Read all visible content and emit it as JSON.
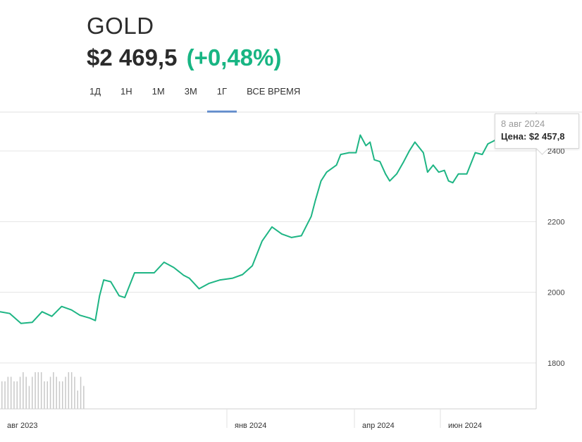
{
  "header": {
    "ticker": "GOLD",
    "price": "$2 469,5",
    "change": "(+0,48%)"
  },
  "tabs": [
    {
      "label": "1Д",
      "active": false
    },
    {
      "label": "1Н",
      "active": false
    },
    {
      "label": "1М",
      "active": false
    },
    {
      "label": "3М",
      "active": false
    },
    {
      "label": "1Г",
      "active": true
    },
    {
      "label": "ВСЕ ВРЕМЯ",
      "active": false
    }
  ],
  "tooltip": {
    "date": "8 авг 2024",
    "price_label": "Цена: $2 457,8"
  },
  "colors": {
    "line": "#1eb584",
    "tab_active": "#2f6ac4",
    "grid": "#e5e5e5",
    "volume": "#c8c8c8"
  },
  "chart_data": {
    "type": "line",
    "title": "",
    "xlabel": "",
    "ylabel": "",
    "x_ticks": [
      "авг 2023",
      "янв 2024",
      "апр 2024",
      "июн 2024"
    ],
    "y_ticks": [
      1800,
      2000,
      2200,
      2400
    ],
    "ylim": [
      1670,
      2510
    ],
    "xlim": [
      "2023-07-23",
      "2024-08-08"
    ],
    "grid": true,
    "series": [
      {
        "x": [
          "2023-07-23",
          "2023-07-30",
          "2023-08-07",
          "2023-08-15",
          "2023-08-22",
          "2023-08-29",
          "2023-09-05",
          "2023-09-12",
          "2023-09-18",
          "2023-09-25",
          "2023-09-29",
          "2023-10-02",
          "2023-10-05",
          "2023-10-10",
          "2023-10-16",
          "2023-10-20",
          "2023-10-27",
          "2023-11-03",
          "2023-11-10",
          "2023-11-17",
          "2023-11-24",
          "2023-12-01",
          "2023-12-05",
          "2023-12-12",
          "2023-12-19",
          "2023-12-27",
          "2024-01-05",
          "2024-01-12",
          "2024-01-19",
          "2024-01-26",
          "2024-02-02",
          "2024-02-09",
          "2024-02-16",
          "2024-02-23",
          "2024-03-01",
          "2024-03-04",
          "2024-03-08",
          "2024-03-12",
          "2024-03-19",
          "2024-03-22",
          "2024-03-28",
          "2024-04-02",
          "2024-04-05",
          "2024-04-09",
          "2024-04-12",
          "2024-04-15",
          "2024-04-19",
          "2024-04-23",
          "2024-04-26",
          "2024-05-01",
          "2024-05-06",
          "2024-05-10",
          "2024-05-14",
          "2024-05-20",
          "2024-05-23",
          "2024-05-27",
          "2024-05-31",
          "2024-06-04",
          "2024-06-07",
          "2024-06-10",
          "2024-06-14",
          "2024-06-20",
          "2024-06-26",
          "2024-07-01",
          "2024-07-05",
          "2024-07-10",
          "2024-07-16",
          "2024-07-19",
          "2024-07-25",
          "2024-07-30",
          "2024-08-02",
          "2024-08-05",
          "2024-08-08"
        ],
        "values": [
          1945,
          1940,
          1912,
          1915,
          1945,
          1932,
          1960,
          1950,
          1935,
          1927,
          1920,
          1990,
          2035,
          2030,
          1990,
          1985,
          2055,
          2055,
          2055,
          2085,
          2070,
          2048,
          2040,
          2010,
          2025,
          2035,
          2040,
          2050,
          2075,
          2145,
          2185,
          2165,
          2155,
          2160,
          2215,
          2260,
          2315,
          2340,
          2360,
          2390,
          2395,
          2395,
          2445,
          2415,
          2425,
          2375,
          2370,
          2335,
          2315,
          2335,
          2370,
          2400,
          2425,
          2395,
          2340,
          2360,
          2340,
          2345,
          2315,
          2310,
          2335,
          2335,
          2395,
          2390,
          2420,
          2430,
          2465,
          2485,
          2460,
          2470,
          2430,
          2420,
          2457.8
        ]
      }
    ],
    "volume": [
      6,
      6,
      7,
      7,
      6,
      6,
      7,
      8,
      7,
      5,
      7,
      8,
      8,
      8,
      6,
      6,
      7,
      8,
      7,
      6,
      6,
      7,
      8,
      8,
      7,
      4,
      7,
      5
    ]
  }
}
